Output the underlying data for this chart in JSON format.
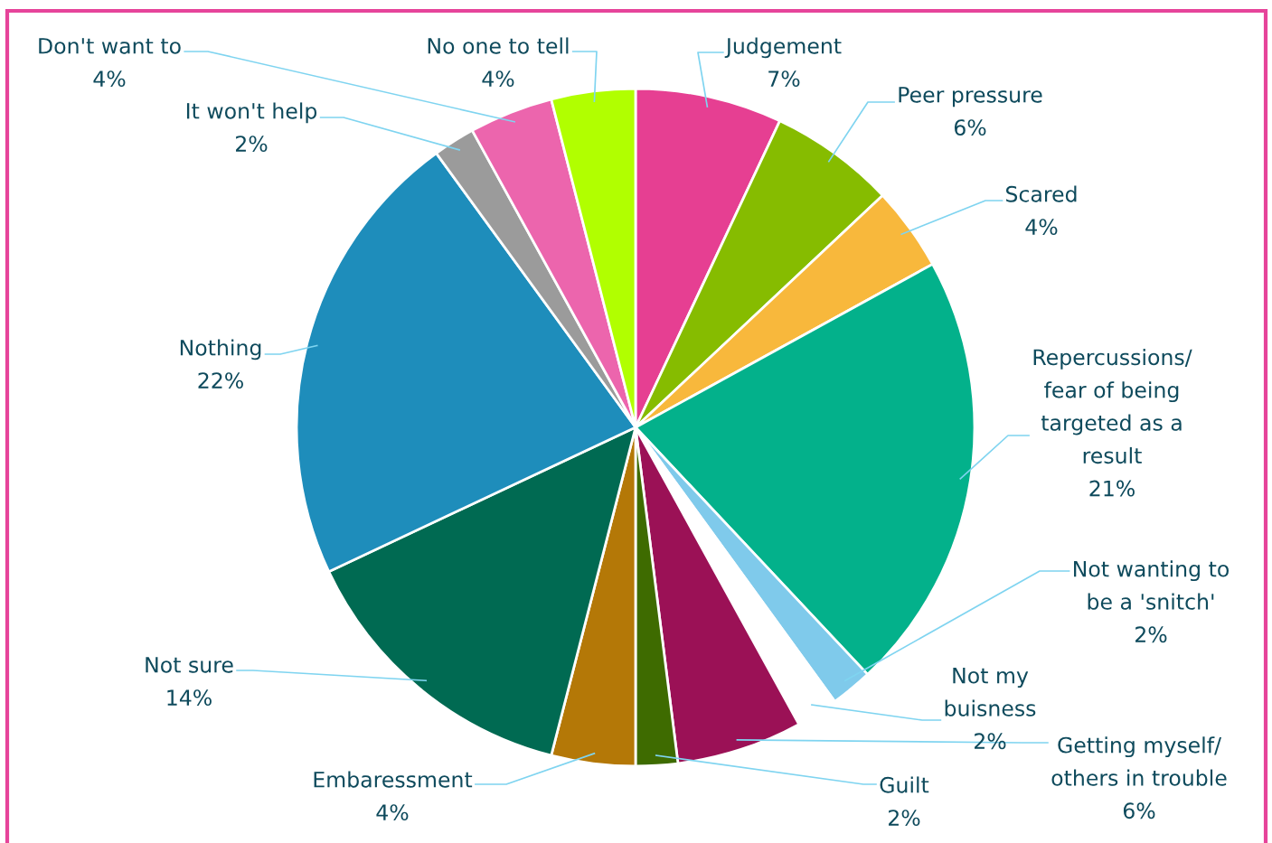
{
  "chart_data": {
    "type": "pie",
    "categories": [
      "Judgement",
      "Peer pressure",
      "Scared",
      "Repercussions/\nfear of being\ntargeted as a\nresult",
      "Not wanting to\nbe a 'snitch'",
      "Not my\nbuisness",
      "Getting myself/\nothers in trouble",
      "Guilt",
      "Embaressment",
      "Not sure",
      "Nothing",
      "It won't help",
      "Don't want to",
      "No one to tell"
    ],
    "values": [
      7,
      6,
      4,
      21,
      2,
      2,
      6,
      2,
      4,
      14,
      22,
      2,
      4,
      4
    ],
    "value_labels": [
      "7%",
      "6%",
      "4%",
      "21%",
      "2%",
      "2%",
      "6%",
      "2%",
      "4%",
      "14%",
      "22%",
      "2%",
      "4%",
      "4%"
    ],
    "colors": [
      "#e63f92",
      "#86bc00",
      "#f8b83c",
      "#03b18b",
      "#7fcaeb",
      "#ffffff",
      "#9b1156",
      "#3e6b00",
      "#b47807",
      "#006a52",
      "#1e8dbb",
      "#9b9b9b",
      "#ec65ad",
      "#b1ff00"
    ]
  }
}
